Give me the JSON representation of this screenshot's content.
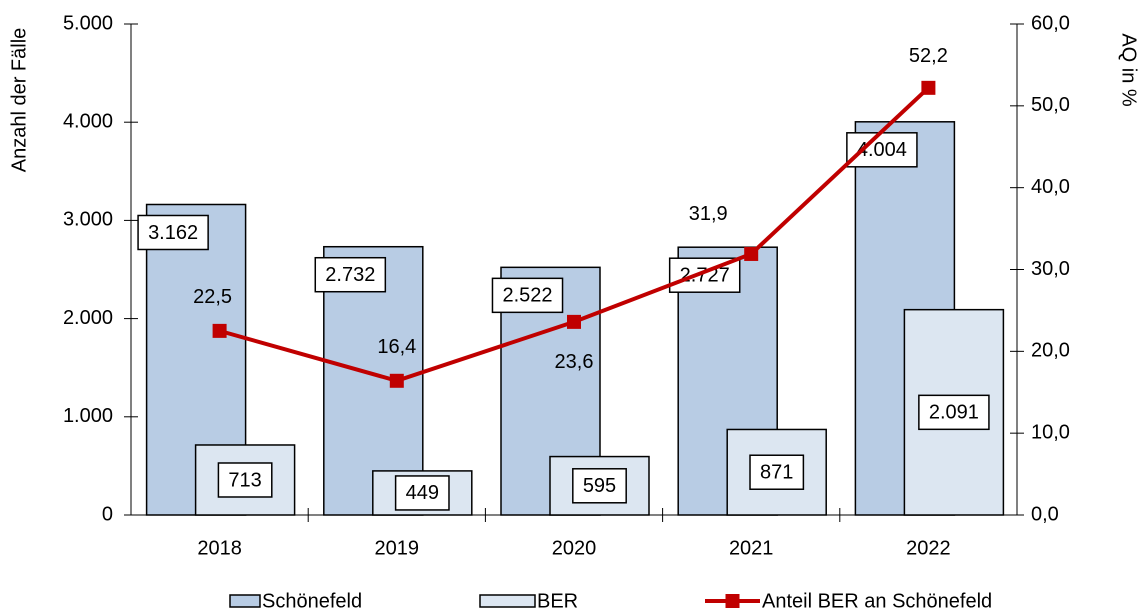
{
  "chart_data": {
    "type": "bar",
    "categories": [
      "2018",
      "2019",
      "2020",
      "2021",
      "2022"
    ],
    "ylabel": "Anzahl der Fälle",
    "y2label": "AQ in %",
    "ylim": [
      0,
      5000
    ],
    "yticks": [
      0,
      {
        "value": 1000,
        "label": "1.000"
      },
      {
        "value": 2000,
        "label": "2.000"
      },
      {
        "value": 3000,
        "label": "3.000"
      },
      {
        "value": 4000,
        "label": "4.000"
      },
      {
        "value": 5000,
        "label": "5.000"
      }
    ],
    "y2lim": [
      0,
      60
    ],
    "y2ticks": [
      {
        "value": 0,
        "label": "0,0"
      },
      {
        "value": 10,
        "label": "10,0"
      },
      {
        "value": 20,
        "label": "20,0"
      },
      {
        "value": 30,
        "label": "30,0"
      },
      {
        "value": 40,
        "label": "40,0"
      },
      {
        "value": 50,
        "label": "50,0"
      },
      {
        "value": 60,
        "label": "60,0"
      }
    ],
    "series": [
      {
        "name": "Schönefeld",
        "type": "bar",
        "color": "#b8cce4",
        "values": [
          3162,
          2732,
          2522,
          2727,
          4004
        ],
        "value_labels": [
          "3.162",
          "2.732",
          "2.522",
          "2.727",
          "4.004"
        ]
      },
      {
        "name": "BER",
        "type": "bar",
        "color": "#dce6f1",
        "values": [
          713,
          449,
          595,
          871,
          2091
        ],
        "value_labels": [
          "713",
          "449",
          "595",
          "871",
          "2.091"
        ]
      },
      {
        "name": "Anteil BER an Schönefeld",
        "type": "line",
        "axis": "y2",
        "color": "#c00000",
        "values": [
          22.5,
          16.4,
          23.6,
          31.9,
          52.2
        ],
        "value_labels": [
          "22,5",
          "16,4",
          "23,6",
          "31,9",
          "52,2"
        ]
      }
    ]
  }
}
